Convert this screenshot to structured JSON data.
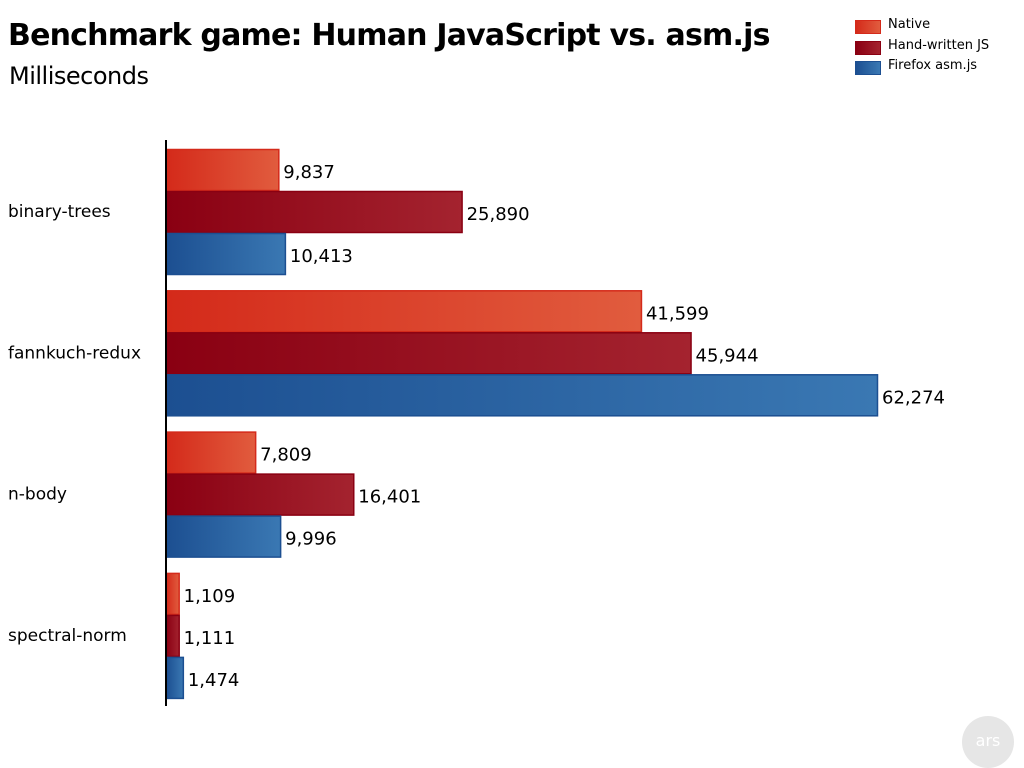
{
  "chart_data": {
    "type": "bar",
    "orientation": "horizontal",
    "title": "Benchmark game: Human JavaScript vs. asm.js",
    "subtitle": "Milliseconds",
    "categories": [
      "binary-trees",
      "fannkuch-redux",
      "n-body",
      "spectral-norm"
    ],
    "series": [
      {
        "name": "Native",
        "values": [
          9837,
          41599,
          7809,
          1109
        ],
        "color": "#d42a1a",
        "color_light": "#e15c3e"
      },
      {
        "name": "Hand-written JS",
        "values": [
          25890,
          45944,
          16401,
          1111
        ],
        "color": "#8a0012",
        "color_light": "#a4232f"
      },
      {
        "name": "Firefox asm.js",
        "values": [
          10413,
          62274,
          9996,
          1474
        ],
        "color": "#1c4f91",
        "color_light": "#3a78b3"
      }
    ],
    "data_labels": [
      [
        "9,837",
        "41,599",
        "7,809",
        "1,109"
      ],
      [
        "25,890",
        "45,944",
        "16,401",
        "1,111"
      ],
      [
        "10,413",
        "62,274",
        "9,996",
        "1,474"
      ]
    ],
    "xlim": [
      0,
      62274
    ],
    "grid": false,
    "legend_position": "top-right"
  },
  "logo_text": "ars"
}
